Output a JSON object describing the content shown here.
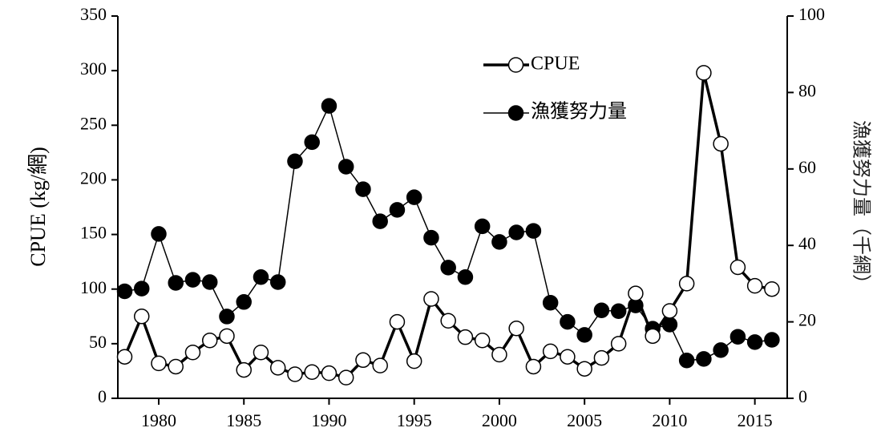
{
  "chart_data": {
    "type": "line",
    "y_label": "CPUE (kg/網)",
    "y2_label": "漁獲努力量（千網）",
    "x": [
      1978,
      1979,
      1980,
      1981,
      1982,
      1983,
      1984,
      1985,
      1986,
      1987,
      1988,
      1989,
      1990,
      1991,
      1992,
      1993,
      1994,
      1995,
      1996,
      1997,
      1998,
      1999,
      2000,
      2001,
      2002,
      2003,
      2004,
      2005,
      2006,
      2007,
      2008,
      2009,
      2010,
      2011,
      2012,
      2013,
      2014,
      2015,
      2016
    ],
    "series": [
      {
        "name": "CPUE",
        "color": "#000000",
        "marker_fill": "#ffffff",
        "line_width": 3.5,
        "values": [
          38,
          75,
          32,
          29,
          42,
          53,
          57,
          26,
          42,
          28,
          22,
          24,
          23,
          19,
          35,
          30,
          70,
          34,
          91,
          71,
          56,
          53,
          40,
          64,
          29,
          43,
          38,
          27,
          37,
          50,
          96,
          57,
          80,
          105,
          298,
          233,
          120,
          103,
          100
        ]
      },
      {
        "name": "漁獲努力量",
        "color": "#000000",
        "marker_fill": "#000000",
        "line_width": 1.5,
        "axis": "y2",
        "values": [
          28,
          28.7,
          43,
          30.2,
          31,
          30.4,
          21.4,
          25.2,
          31.7,
          30.4,
          62,
          67,
          76.5,
          60.6,
          54.7,
          46.3,
          49.3,
          52.6,
          42,
          34.2,
          31.7,
          45,
          40.9,
          43.4,
          43.8,
          25,
          20,
          16.6,
          23,
          22.8,
          24.3,
          18.2,
          19.3,
          9.9,
          10.3,
          12.6,
          16.1,
          14.7,
          15.3
        ]
      }
    ],
    "xlim": [
      1977.6,
      2016.9
    ],
    "xticks": [
      1980,
      1985,
      1990,
      1995,
      2000,
      2005,
      2010,
      2015
    ],
    "ylim": [
      0,
      350
    ],
    "yticks": [
      0,
      50,
      100,
      150,
      200,
      250,
      300,
      350
    ],
    "y2lim": [
      0,
      100
    ],
    "y2ticks": [
      0,
      20,
      40,
      60,
      80,
      100
    ]
  }
}
